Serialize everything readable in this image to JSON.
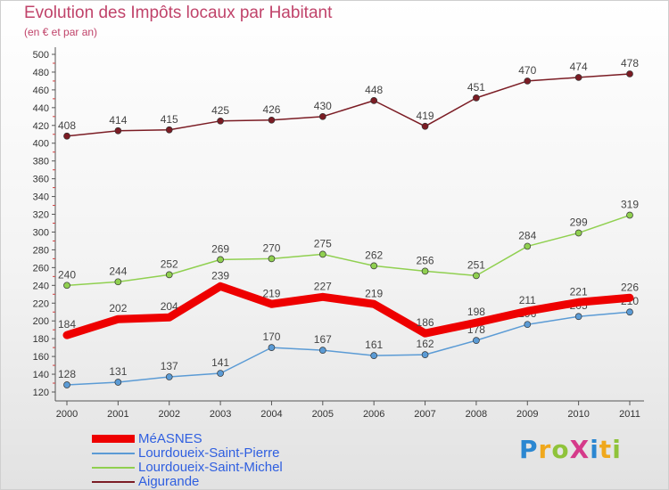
{
  "title": "Evolution des Impôts locaux par Habitant",
  "subtitle": "(en € et par an)",
  "logo": {
    "text": "ProXiti",
    "letter_colors": [
      "#2b87d1",
      "#f0a81c",
      "#8fc33a",
      "#d53a8a",
      "#2b87d1",
      "#f0a81c",
      "#8fc33a"
    ]
  },
  "chart_data": {
    "type": "line",
    "x": [
      "2000",
      "2001",
      "2002",
      "2003",
      "2004",
      "2005",
      "2006",
      "2007",
      "2008",
      "2009",
      "2010",
      "2011"
    ],
    "ylim": [
      120,
      500
    ],
    "yticks": [
      120,
      140,
      160,
      180,
      200,
      220,
      240,
      260,
      280,
      300,
      320,
      340,
      360,
      380,
      400,
      420,
      440,
      460,
      480,
      500
    ],
    "grid": false,
    "legend": "bottom-left",
    "series": [
      {
        "name": "MéASNES",
        "color": "#ee0000",
        "values": [
          184,
          202,
          204,
          239,
          219,
          227,
          219,
          186,
          198,
          211,
          221,
          226
        ]
      },
      {
        "name": "Lourdoueix-Saint-Pierre",
        "color": "#5b9bd5",
        "values": [
          128,
          131,
          137,
          141,
          170,
          167,
          161,
          162,
          178,
          196,
          205,
          210
        ],
        "labels": [
          "128",
          "131",
          "137",
          "141",
          "170",
          "167",
          "161",
          "162",
          "178",
          "196",
          "205",
          "210"
        ]
      },
      {
        "name": "Lourdoueix-Saint-Michel",
        "color": "#90d050",
        "values": [
          240,
          244,
          252,
          269,
          270,
          275,
          262,
          256,
          251,
          284,
          299,
          319
        ]
      },
      {
        "name": "Aigurande",
        "color": "#7b1c24",
        "values": [
          408,
          414,
          415,
          425,
          426,
          430,
          448,
          419,
          451,
          470,
          474,
          478
        ]
      }
    ]
  }
}
